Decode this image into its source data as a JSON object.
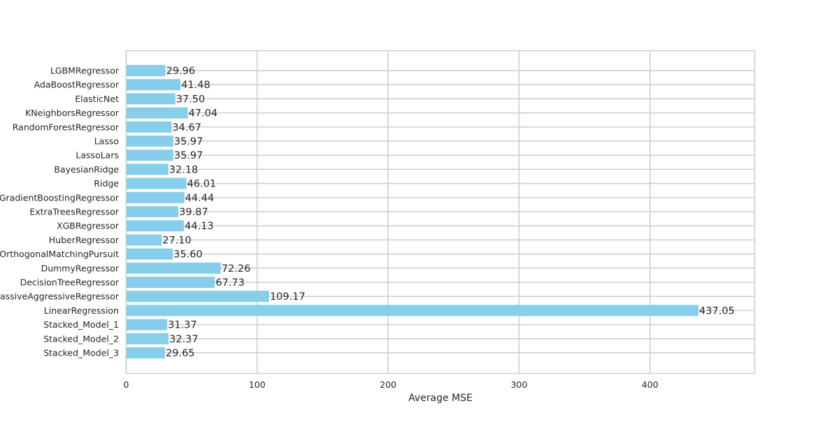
{
  "chart_data": {
    "type": "bar",
    "orientation": "horizontal",
    "title": "",
    "xlabel": "Average MSE",
    "ylabel": "",
    "xlim": [
      0,
      480
    ],
    "xticks": [
      0,
      100,
      200,
      300,
      400
    ],
    "grid": true,
    "bar_color": "#87CEEB",
    "grid_color": "#cccccc",
    "categories": [
      "LGBMRegressor",
      "AdaBoostRegressor",
      "ElasticNet",
      "KNeighborsRegressor",
      "RandomForestRegressor",
      "Lasso",
      "LassoLars",
      "BayesianRidge",
      "Ridge",
      "GradientBoostingRegressor",
      "ExtraTreesRegressor",
      "XGBRegressor",
      "HuberRegressor",
      "OrthogonalMatchingPursuit",
      "DummyRegressor",
      "DecisionTreeRegressor",
      "PassiveAggressiveRegressor",
      "LinearRegression",
      "Stacked_Model_1",
      "Stacked_Model_2",
      "Stacked_Model_3"
    ],
    "values": [
      29.96,
      41.48,
      37.5,
      47.04,
      34.67,
      35.97,
      35.97,
      32.18,
      46.01,
      44.44,
      39.87,
      44.13,
      27.1,
      35.6,
      72.26,
      67.73,
      109.17,
      437.05,
      31.37,
      32.37,
      29.65
    ],
    "data_labels": [
      "29.96",
      "41.48",
      "37.50",
      "47.04",
      "34.67",
      "35.97",
      "35.97",
      "32.18",
      "46.01",
      "44.44",
      "39.87",
      "44.13",
      "27.10",
      "35.60",
      "72.26",
      "67.73",
      "109.17",
      "437.05",
      "31.37",
      "32.37",
      "29.65"
    ]
  }
}
